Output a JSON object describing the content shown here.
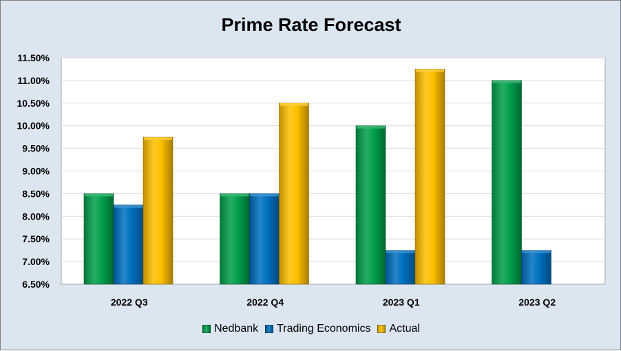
{
  "chart_data": {
    "type": "bar",
    "title": "Prime Rate Forecast",
    "categories": [
      "2022 Q3",
      "2022 Q4",
      "2023 Q1",
      "2023 Q2"
    ],
    "series": [
      {
        "name": "Nedbank",
        "color": "#00a04b",
        "values": [
          8.5,
          8.5,
          10.0,
          11.0
        ]
      },
      {
        "name": "Trading Economics",
        "color": "#0070c0",
        "values": [
          8.25,
          8.5,
          7.25,
          7.25
        ]
      },
      {
        "name": "Actual",
        "color": "#ffc000",
        "values": [
          9.75,
          10.5,
          11.25,
          null
        ]
      }
    ],
    "ylim": [
      6.5,
      11.5
    ],
    "yticks": [
      6.5,
      7.0,
      7.5,
      8.0,
      8.5,
      9.0,
      9.5,
      10.0,
      10.5,
      11.0,
      11.5
    ],
    "ytick_labels": [
      "6.50%",
      "7.00%",
      "7.50%",
      "8.00%",
      "8.50%",
      "9.00%",
      "9.50%",
      "10.00%",
      "10.50%",
      "11.00%",
      "11.50%"
    ],
    "xlabel": "",
    "ylabel": "",
    "grid": true,
    "legend_position": "bottom"
  }
}
